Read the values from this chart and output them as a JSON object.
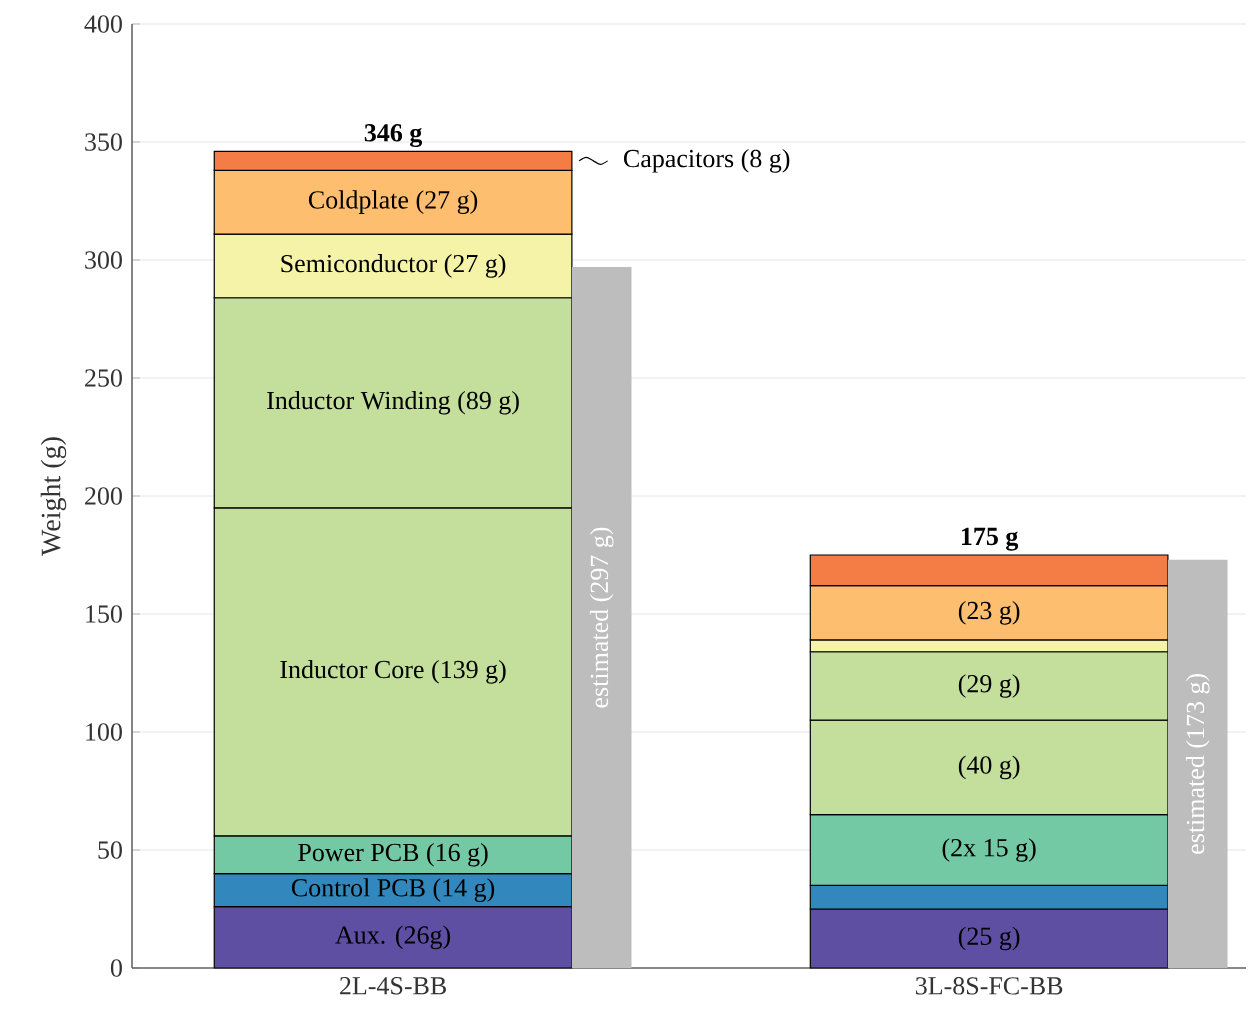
{
  "chart_data": [
    {
      "type": "bar",
      "stacked": true,
      "ylabel": "Weight (g)",
      "categories": [
        "2L-4S-BB",
        "3L-8S-FC-BB"
      ],
      "series": [
        {
          "color": "#5e4fa2",
          "values": [
            26,
            25
          ],
          "value_labels": [
            "Aux. (26g)",
            "(25 g)"
          ]
        },
        {
          "color": "#3288bd",
          "values": [
            14,
            10
          ],
          "value_labels": [
            "Control PCB (14 g)",
            null
          ]
        },
        {
          "color": "#74c9a5",
          "values": [
            16,
            30
          ],
          "value_labels": [
            "Power PCB (16 g)",
            "(2x 15 g)"
          ]
        },
        {
          "color": "#c3df9b",
          "values": [
            139,
            40
          ],
          "value_labels": [
            "Inductor Core (139 g)",
            "(40 g)"
          ]
        },
        {
          "color": "#c3df9b",
          "values": [
            89,
            29
          ],
          "value_labels": [
            "Inductor Winding (89 g)",
            "(29 g)"
          ]
        },
        {
          "color": "#f4f3a8",
          "values": [
            27,
            5
          ],
          "value_labels": [
            "Semiconductor (27 g)",
            null
          ]
        },
        {
          "color": "#fdbe6f",
          "values": [
            27,
            23
          ],
          "value_labels": [
            "Coldplate (27 g)",
            "(23 g)"
          ]
        },
        {
          "color": "#f47d45",
          "values": [
            8,
            13
          ],
          "value_labels": [
            null,
            null
          ]
        }
      ],
      "totals": [
        "346 g",
        "175 g"
      ],
      "annotations": [
        "Capacitors (8 g)"
      ],
      "ylim": [
        0,
        400
      ],
      "yticks": [
        0,
        50,
        100,
        150,
        200,
        250,
        300,
        350,
        400
      ],
      "grid": "y"
    },
    {
      "type": "bar",
      "categories": [
        "2L-4S-BB",
        "3L-8S-FC-BB"
      ],
      "series": [
        {
          "color": "#bdbdbd",
          "values": [
            297,
            173
          ],
          "value_labels": [
            "estimated (297 g)",
            "estimated (173 g)"
          ]
        }
      ],
      "ylim": [
        0,
        400
      ],
      "tick_labels": false
    }
  ]
}
